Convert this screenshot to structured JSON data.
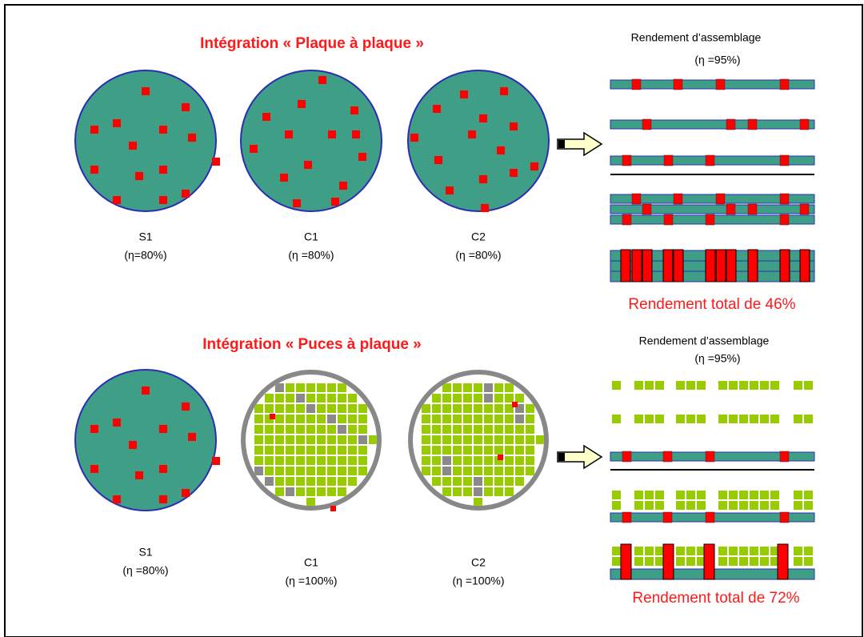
{
  "sections": [
    {
      "title": "Intégration « Plaque à plaque »",
      "assembly": {
        "label": "Rendement d’assemblage",
        "yield": "(η =95%)"
      },
      "wafers": [
        {
          "name": "S1",
          "yield": "(η=80%)"
        },
        {
          "name": "C1",
          "yield": "(η =80%)"
        },
        {
          "name": "C2",
          "yield": "(η =80%)"
        }
      ],
      "total": "Rendement total de 46%"
    },
    {
      "title": "Intégration « Puces à plaque »",
      "assembly": {
        "label": "Rendement d’assemblage",
        "yield": "(η =95%)"
      },
      "wafers": [
        {
          "name": "S1",
          "yield": "(η =80%)"
        },
        {
          "name": "C1",
          "yield": "(η =100%)"
        },
        {
          "name": "C2",
          "yield": "(η =100%)"
        }
      ],
      "total": "Rendement total de 72%"
    }
  ]
}
